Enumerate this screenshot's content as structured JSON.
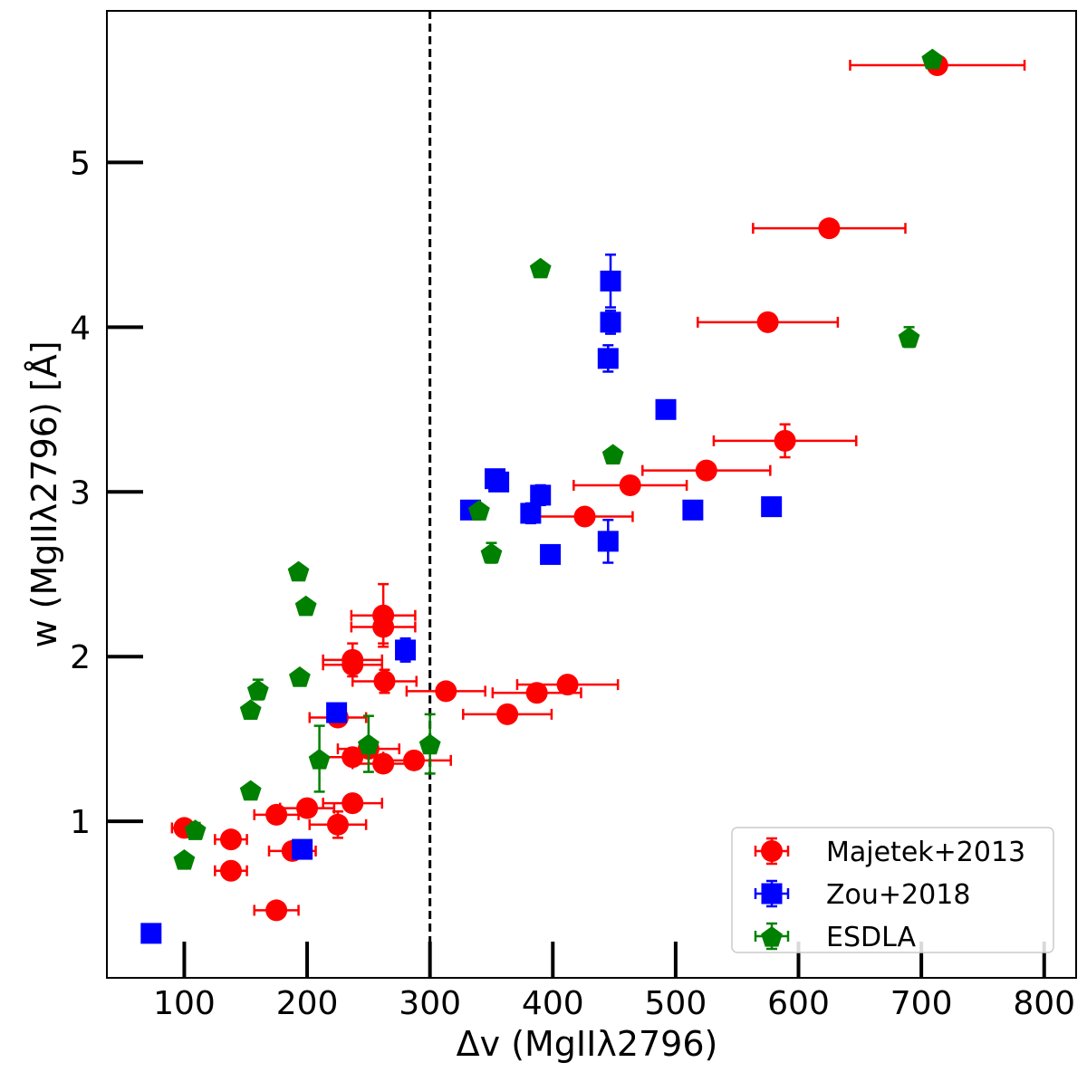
{
  "chart_data": {
    "type": "scatter",
    "xlabel": "Δv (MgIIλ2796)",
    "ylabel": "w (MgIIλ2796) [Å]",
    "xlim": [
      37,
      826
    ],
    "ylim": [
      0.05,
      5.92
    ],
    "xticks": [
      100,
      200,
      300,
      400,
      500,
      600,
      700,
      800
    ],
    "yticks": [
      1,
      2,
      3,
      4,
      5
    ],
    "grid": false,
    "legend_position": "bottom-right",
    "vline": {
      "x": 300,
      "style": "dashed",
      "color": "#000000"
    },
    "series": [
      {
        "name": "Majetek+2013",
        "marker": "circle",
        "color": "#ff0000",
        "points": [
          {
            "x": 713,
            "y": 5.59,
            "xerr": 71,
            "yerr": 0.03
          },
          {
            "x": 625,
            "y": 4.6,
            "xerr": 62,
            "yerr": 0
          },
          {
            "x": 575,
            "y": 4.03,
            "xerr": 57,
            "yerr": 0
          },
          {
            "x": 589,
            "y": 3.31,
            "xerr": 58,
            "yerr": 0.1
          },
          {
            "x": 525,
            "y": 3.13,
            "xerr": 52,
            "yerr": 0
          },
          {
            "x": 463,
            "y": 3.04,
            "xerr": 46,
            "yerr": 0
          },
          {
            "x": 426,
            "y": 2.85,
            "xerr": 39,
            "yerr": 0.04
          },
          {
            "x": 412,
            "y": 1.83,
            "xerr": 41,
            "yerr": 0.05
          },
          {
            "x": 387,
            "y": 1.78,
            "xerr": 36,
            "yerr": 0.05
          },
          {
            "x": 363,
            "y": 1.65,
            "xerr": 36,
            "yerr": 0
          },
          {
            "x": 313,
            "y": 1.79,
            "xerr": 32,
            "yerr": 0
          },
          {
            "x": 262,
            "y": 2.25,
            "xerr": 26,
            "yerr": 0.19
          },
          {
            "x": 262,
            "y": 2.18,
            "xerr": 26,
            "yerr": 0.1
          },
          {
            "x": 237,
            "y": 1.98,
            "xerr": 24,
            "yerr": 0.1
          },
          {
            "x": 237,
            "y": 1.95,
            "xerr": 24,
            "yerr": 0.05
          },
          {
            "x": 263,
            "y": 1.85,
            "xerr": 26,
            "yerr": 0.07
          },
          {
            "x": 225,
            "y": 1.63,
            "xerr": 23,
            "yerr": 0
          },
          {
            "x": 250,
            "y": 1.44,
            "xerr": 25,
            "yerr": 0
          },
          {
            "x": 237,
            "y": 1.39,
            "xerr": 25,
            "yerr": 0
          },
          {
            "x": 262,
            "y": 1.35,
            "xerr": 25,
            "yerr": 0
          },
          {
            "x": 287,
            "y": 1.37,
            "xerr": 30,
            "yerr": 0
          },
          {
            "x": 237,
            "y": 1.11,
            "xerr": 24,
            "yerr": 0
          },
          {
            "x": 200,
            "y": 1.08,
            "xerr": 22,
            "yerr": 0
          },
          {
            "x": 175,
            "y": 1.04,
            "xerr": 18,
            "yerr": 0
          },
          {
            "x": 225,
            "y": 0.98,
            "xerr": 23,
            "yerr": 0.08
          },
          {
            "x": 100,
            "y": 0.96,
            "xerr": 10,
            "yerr": 0
          },
          {
            "x": 138,
            "y": 0.89,
            "xerr": 13,
            "yerr": 0
          },
          {
            "x": 138,
            "y": 0.7,
            "xerr": 13,
            "yerr": 0
          },
          {
            "x": 188,
            "y": 0.82,
            "xerr": 19,
            "yerr": 0
          },
          {
            "x": 175,
            "y": 0.46,
            "xerr": 18,
            "yerr": 0
          }
        ]
      },
      {
        "name": "Zou+2018",
        "marker": "square",
        "color": "#0000ff",
        "points": [
          {
            "x": 73,
            "y": 0.32,
            "xerr": 0,
            "yerr": 0
          },
          {
            "x": 196,
            "y": 0.83,
            "xerr": 0,
            "yerr": 0
          },
          {
            "x": 224,
            "y": 1.66,
            "xerr": 0,
            "yerr": 0
          },
          {
            "x": 280,
            "y": 2.04,
            "xerr": 0,
            "yerr": 0.07
          },
          {
            "x": 447,
            "y": 4.28,
            "xerr": 0,
            "yerr": 0.16
          },
          {
            "x": 447,
            "y": 4.03,
            "xerr": 0,
            "yerr": 0.07
          },
          {
            "x": 445,
            "y": 3.81,
            "xerr": 0,
            "yerr": 0.08
          },
          {
            "x": 492,
            "y": 3.5,
            "xerr": 0,
            "yerr": 0.02
          },
          {
            "x": 356,
            "y": 3.06,
            "xerr": 0,
            "yerr": 0
          },
          {
            "x": 353,
            "y": 3.08,
            "xerr": 0,
            "yerr": 0
          },
          {
            "x": 390,
            "y": 2.98,
            "xerr": 0,
            "yerr": 0.06
          },
          {
            "x": 382,
            "y": 2.87,
            "xerr": 0,
            "yerr": 0.06
          },
          {
            "x": 333,
            "y": 2.89,
            "xerr": 0,
            "yerr": 0
          },
          {
            "x": 514,
            "y": 2.89,
            "xerr": 0,
            "yerr": 0
          },
          {
            "x": 578,
            "y": 2.91,
            "xerr": 0,
            "yerr": 0.04
          },
          {
            "x": 445,
            "y": 2.7,
            "xerr": 0,
            "yerr": 0.13
          },
          {
            "x": 398,
            "y": 2.62,
            "xerr": 0,
            "yerr": 0
          }
        ]
      },
      {
        "name": "ESDLA",
        "marker": "pentagon",
        "color": "#008000",
        "points": [
          {
            "x": 709,
            "y": 5.63,
            "xerr": 0,
            "yerr": 0
          },
          {
            "x": 690,
            "y": 3.94,
            "xerr": 0,
            "yerr": 0.06
          },
          {
            "x": 390,
            "y": 4.36,
            "xerr": 0,
            "yerr": 0
          },
          {
            "x": 449,
            "y": 3.23,
            "xerr": 0,
            "yerr": 0
          },
          {
            "x": 340,
            "y": 2.89,
            "xerr": 0,
            "yerr": 0
          },
          {
            "x": 350,
            "y": 2.63,
            "xerr": 0,
            "yerr": 0.06
          },
          {
            "x": 193,
            "y": 2.52,
            "xerr": 0,
            "yerr": 0
          },
          {
            "x": 199,
            "y": 2.31,
            "xerr": 0,
            "yerr": 0
          },
          {
            "x": 194,
            "y": 1.88,
            "xerr": 0,
            "yerr": 0
          },
          {
            "x": 160,
            "y": 1.8,
            "xerr": 0,
            "yerr": 0.06
          },
          {
            "x": 154,
            "y": 1.68,
            "xerr": 0,
            "yerr": 0.02
          },
          {
            "x": 210,
            "y": 1.38,
            "xerr": 0,
            "yerr": 0.2
          },
          {
            "x": 250,
            "y": 1.47,
            "xerr": 0,
            "yerr": 0.17
          },
          {
            "x": 300,
            "y": 1.47,
            "xerr": 0,
            "yerr": 0.18
          },
          {
            "x": 154,
            "y": 1.19,
            "xerr": 0,
            "yerr": 0
          },
          {
            "x": 109,
            "y": 0.95,
            "xerr": 0,
            "yerr": 0.04
          },
          {
            "x": 100,
            "y": 0.77,
            "xerr": 0,
            "yerr": 0
          }
        ]
      }
    ]
  }
}
